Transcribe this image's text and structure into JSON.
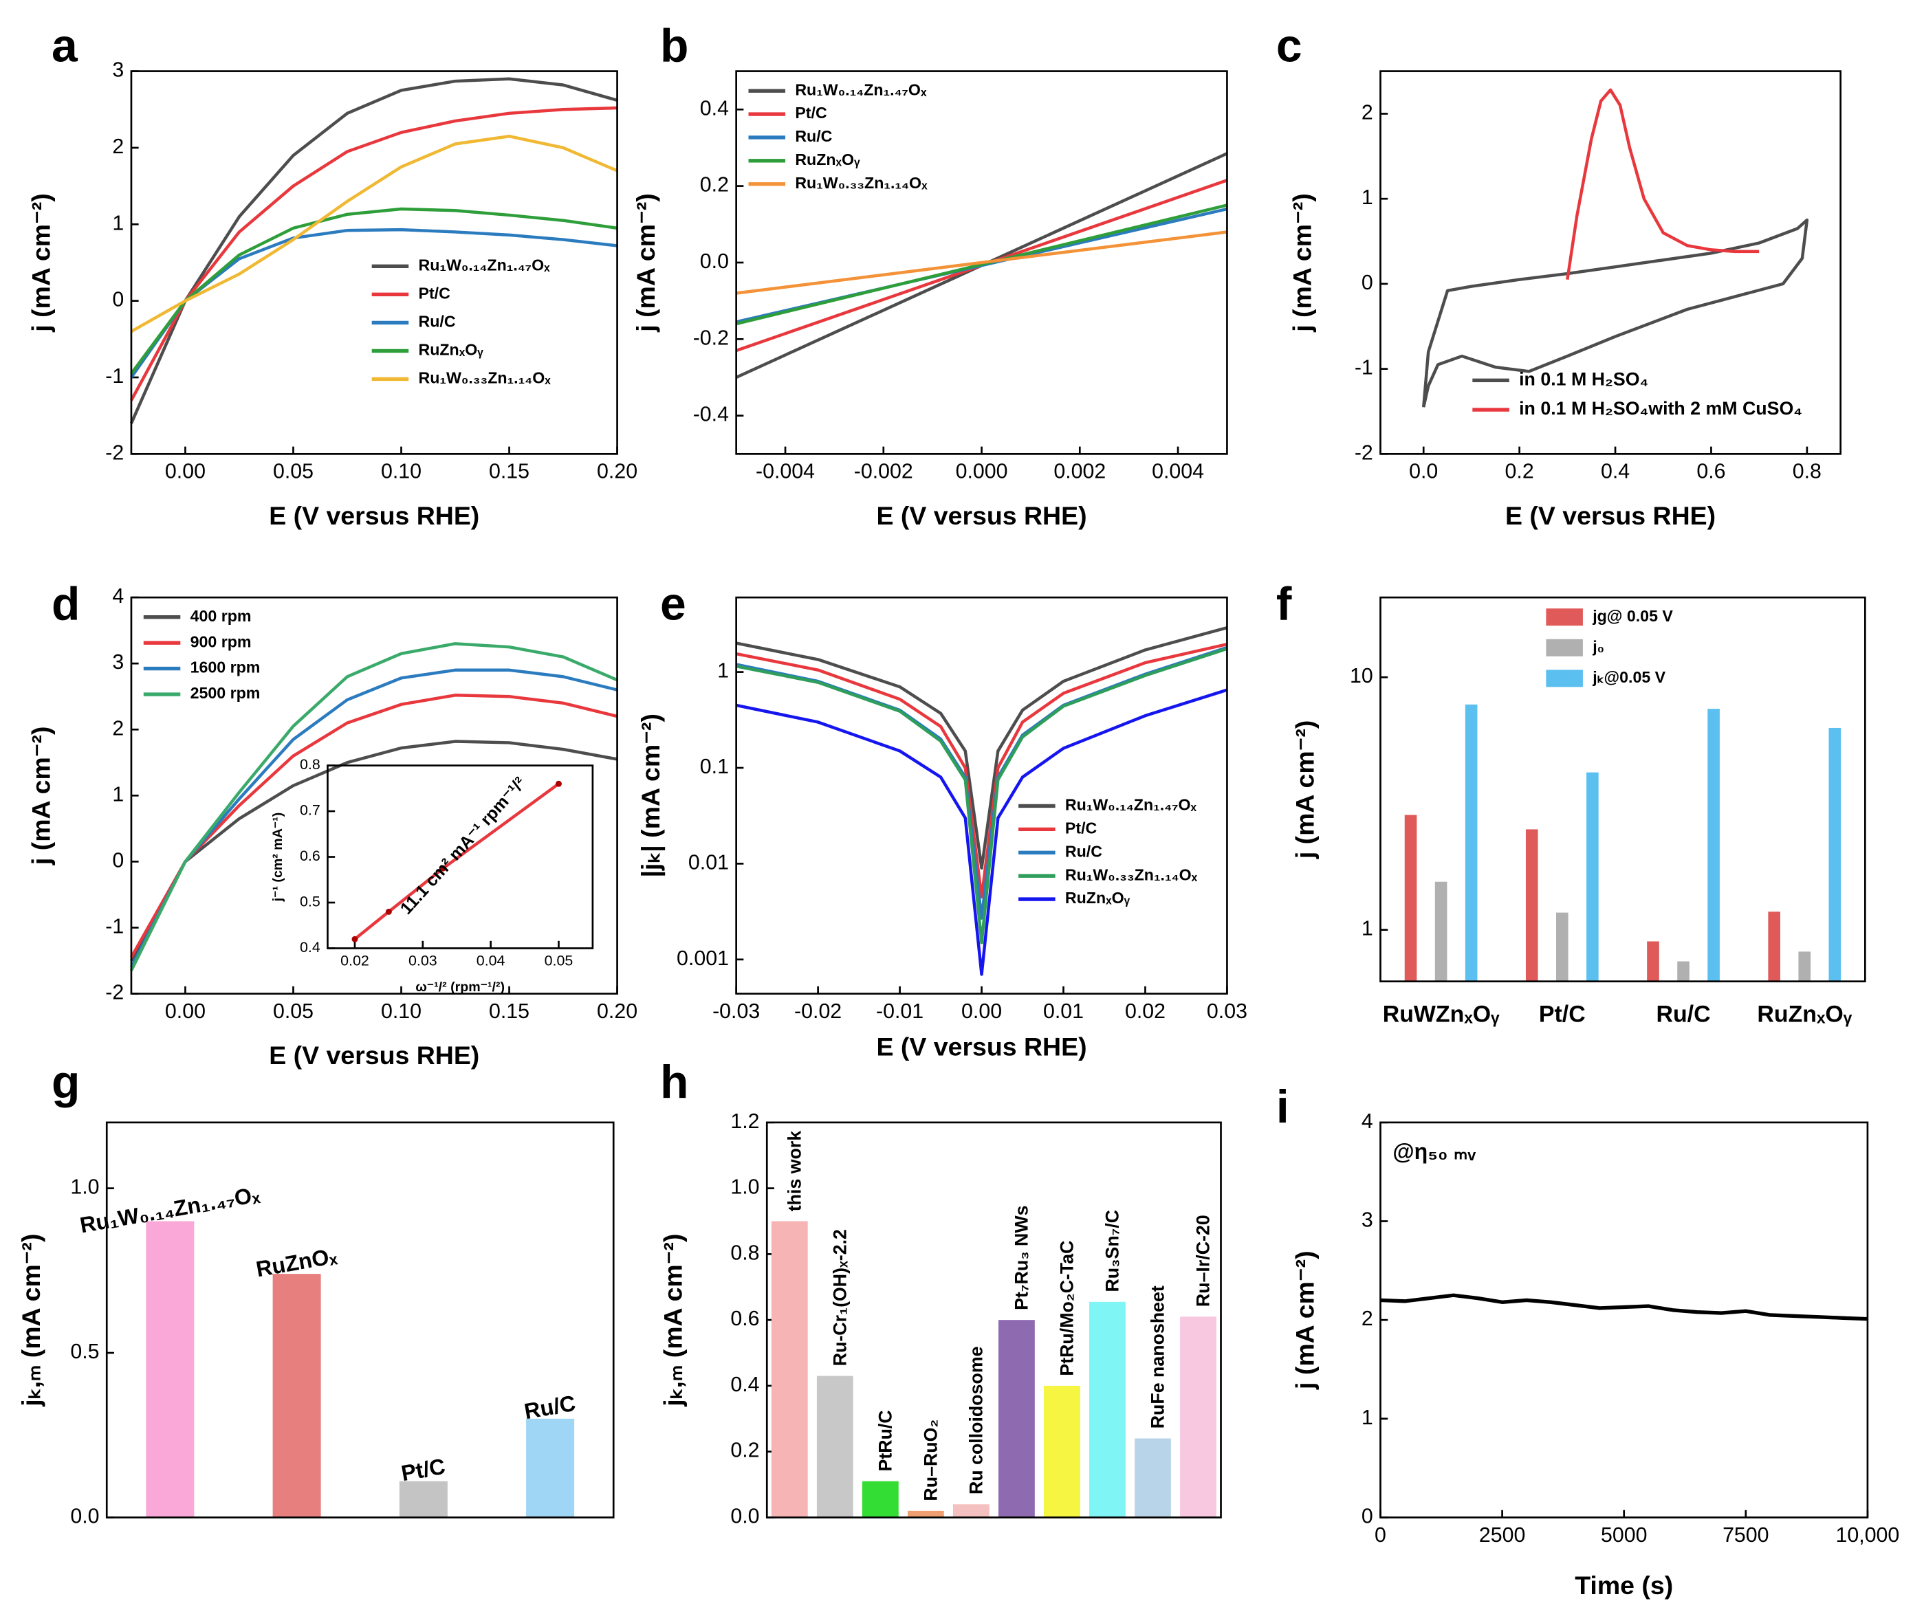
{
  "chart_data": [
    {
      "type": "line",
      "label": "a",
      "xlabel": "E (V versus RHE)",
      "ylabel": "j (mA cm⁻²)",
      "xlim": [
        -0.025,
        0.2
      ],
      "ylim": [
        -2,
        3
      ],
      "xticks": [
        {
          "value": 0,
          "label": "0.00"
        },
        {
          "value": 0.05,
          "label": "0.05"
        },
        {
          "value": 0.1,
          "label": "0.10"
        },
        {
          "value": 0.15,
          "label": "0.15"
        },
        {
          "value": 0.2,
          "label": "0.20"
        }
      ],
      "yticks": [
        -2,
        -1,
        0,
        1,
        2,
        3
      ],
      "legend": "lower right",
      "x": [
        -0.025,
        0,
        0.025,
        0.05,
        0.075,
        0.1,
        0.125,
        0.15,
        0.175,
        0.2
      ],
      "series": [
        {
          "name": "Ru₁W₀.₁₄Zn₁.₄₇Oₓ",
          "color": "#4d4d4d",
          "values": [
            -1.6,
            0,
            1.1,
            1.9,
            2.45,
            2.75,
            2.87,
            2.9,
            2.82,
            2.62
          ]
        },
        {
          "name": "Pt/C",
          "color": "#e8383d",
          "values": [
            -1.3,
            0,
            0.9,
            1.5,
            1.95,
            2.2,
            2.35,
            2.45,
            2.5,
            2.52
          ]
        },
        {
          "name": "Ru/C",
          "color": "#2b7bbf",
          "values": [
            -1.0,
            0,
            0.55,
            0.82,
            0.92,
            0.93,
            0.9,
            0.86,
            0.8,
            0.72
          ]
        },
        {
          "name": "RuZnₓOᵧ",
          "color": "#2e9e3a",
          "values": [
            -0.95,
            0,
            0.6,
            0.95,
            1.13,
            1.2,
            1.18,
            1.12,
            1.05,
            0.95
          ]
        },
        {
          "name": "Ru₁W₀.₃₃Zn₁.₁₄Oₓ",
          "color": "#f0b833",
          "values": [
            -0.4,
            0,
            0.35,
            0.8,
            1.3,
            1.75,
            2.05,
            2.15,
            2.0,
            1.7
          ]
        }
      ]
    },
    {
      "type": "line",
      "label": "b",
      "xlabel": "E (V versus RHE)",
      "ylabel": "j (mA cm⁻²)",
      "xlim": [
        -0.005,
        0.005
      ],
      "ylim": [
        -0.5,
        0.5
      ],
      "xticks": [
        -0.004,
        -0.002,
        {
          "value": 0,
          "label": "0.000"
        },
        0.002,
        0.004
      ],
      "yticks": [
        -0.4,
        -0.2,
        {
          "value": 0,
          "label": "0.0"
        },
        0.2,
        0.4
      ],
      "legend": "upper left",
      "x": [
        -0.005,
        0.005
      ],
      "series": [
        {
          "name": "Ru₁W₀.₁₄Zn₁.₄₇Oₓ",
          "color": "#4d4d4d",
          "values": [
            -0.3,
            0.285
          ]
        },
        {
          "name": "Pt/C",
          "color": "#e8383d",
          "values": [
            -0.23,
            0.215
          ]
        },
        {
          "name": "Ru/C",
          "color": "#2b7bbf",
          "values": [
            -0.155,
            0.14
          ]
        },
        {
          "name": "RuZnₓOᵧ",
          "color": "#2e9e3a",
          "values": [
            -0.16,
            0.15
          ]
        },
        {
          "name": "Ru₁W₀.₃₃Zn₁.₁₄Oₓ",
          "color": "#f39237",
          "values": [
            -0.08,
            0.08
          ]
        }
      ]
    },
    {
      "type": "line",
      "label": "c",
      "xlabel": "E (V versus RHE)",
      "ylabel": "j (mA cm⁻²)",
      "xlim": [
        -0.09,
        0.87
      ],
      "ylim": [
        -2,
        2.5
      ],
      "xticks": [
        {
          "value": 0,
          "label": "0.0"
        },
        0.2,
        0.4,
        0.6,
        0.8
      ],
      "yticks": [
        -2,
        -1,
        0,
        1,
        2
      ],
      "legend": "lower right",
      "series": [
        {
          "name": "in 0.1 M H₂SO₄",
          "color": "#4d4d4d",
          "x": [
            0,
            0.01,
            0.05,
            0.1,
            0.2,
            0.3,
            0.4,
            0.5,
            0.6,
            0.7,
            0.78,
            0.8,
            0.79,
            0.75,
            0.65,
            0.55,
            0.4,
            0.3,
            0.22,
            0.15,
            0.08,
            0.03,
            0.01,
            0
          ],
          "values": [
            -1.45,
            -0.8,
            -0.08,
            -0.03,
            0.05,
            0.12,
            0.2,
            0.28,
            0.36,
            0.48,
            0.65,
            0.75,
            0.3,
            0,
            -0.15,
            -0.3,
            -0.62,
            -0.85,
            -1.03,
            -0.98,
            -0.85,
            -0.95,
            -1.2,
            -1.45
          ]
        },
        {
          "name": "in 0.1 M H₂SO₄with 2 mM CuSO₄",
          "color": "#e8383d",
          "x": [
            0.3,
            0.32,
            0.35,
            0.37,
            0.39,
            0.41,
            0.43,
            0.46,
            0.5,
            0.55,
            0.6,
            0.65,
            0.7
          ],
          "values": [
            0.05,
            0.8,
            1.7,
            2.15,
            2.28,
            2.1,
            1.6,
            1.0,
            0.6,
            0.45,
            0.4,
            0.38,
            0.38
          ]
        }
      ]
    },
    {
      "type": "line",
      "label": "d",
      "xlabel": "E (V versus RHE)",
      "ylabel": "j (mA cm⁻²)",
      "xlim": [
        -0.025,
        0.2
      ],
      "ylim": [
        -2,
        4
      ],
      "xticks": [
        {
          "value": 0,
          "label": "0.00"
        },
        {
          "value": 0.05,
          "label": "0.05"
        },
        {
          "value": 0.1,
          "label": "0.10"
        },
        {
          "value": 0.15,
          "label": "0.15"
        },
        {
          "value": 0.2,
          "label": "0.20"
        }
      ],
      "yticks": [
        -2,
        -1,
        0,
        1,
        2,
        3,
        4
      ],
      "legend": "upper left",
      "x": [
        -0.025,
        0,
        0.025,
        0.05,
        0.075,
        0.1,
        0.125,
        0.15,
        0.175,
        0.2
      ],
      "series": [
        {
          "name": "400 rpm",
          "color": "#4d4d4d",
          "values": [
            -1.5,
            0,
            0.65,
            1.15,
            1.5,
            1.72,
            1.82,
            1.8,
            1.7,
            1.55
          ]
        },
        {
          "name": "900 rpm",
          "color": "#e8383d",
          "values": [
            -1.45,
            0,
            0.85,
            1.6,
            2.1,
            2.38,
            2.52,
            2.5,
            2.4,
            2.2
          ]
        },
        {
          "name": "1600 rpm",
          "color": "#2b7bbf",
          "values": [
            -1.6,
            0,
            0.95,
            1.85,
            2.45,
            2.78,
            2.9,
            2.9,
            2.8,
            2.6
          ]
        },
        {
          "name": "2500 rpm",
          "color": "#3aaa6a",
          "values": [
            -1.65,
            0,
            1.05,
            2.05,
            2.8,
            3.15,
            3.3,
            3.25,
            3.1,
            2.75
          ]
        }
      ]
    },
    {
      "type": "line",
      "xlabel": "ω⁻¹/² (rpm⁻¹/²)",
      "ylabel": "j⁻¹ (cm² mA⁻¹)",
      "xlim": [
        0.016,
        0.055
      ],
      "ylim": [
        0.4,
        0.8
      ],
      "xticks": [
        0.02,
        0.03,
        0.04,
        0.05
      ],
      "yticks": [
        0.4,
        0.5,
        0.6,
        0.7,
        0.8
      ],
      "markers": true,
      "annotations": [
        "11.1 cm² mA⁻¹ rpm⁻¹/²"
      ],
      "x": [
        0.02,
        0.025,
        0.033,
        0.05
      ],
      "series": [
        {
          "color": "#e8383d",
          "values": [
            0.42,
            0.48,
            0.575,
            0.76
          ]
        }
      ]
    },
    {
      "type": "line",
      "label": "e",
      "xlabel": "E (V versus RHE)",
      "ylabel": "|jₖ| (mA cm⁻²)",
      "xlim": [
        -0.03,
        0.03
      ],
      "ylim": [
        0.00044,
        6
      ],
      "yscale": "log",
      "xticks": [
        -0.03,
        -0.02,
        -0.01,
        {
          "value": 0,
          "label": "0.00"
        },
        0.01,
        0.02,
        0.03
      ],
      "yticks": [
        0.001,
        0.01,
        0.1,
        1
      ],
      "legend": "lower right",
      "x": [
        -0.03,
        -0.02,
        -0.01,
        -0.005,
        -0.002,
        0,
        0.002,
        0.005,
        0.01,
        0.02,
        0.03
      ],
      "series": [
        {
          "name": "Ru₁W₀.₁₄Zn₁.₄₇Oₓ",
          "color": "#4d4d4d",
          "values": [
            2.0,
            1.35,
            0.7,
            0.37,
            0.15,
            0.009,
            0.15,
            0.4,
            0.8,
            1.7,
            2.9
          ]
        },
        {
          "name": "Pt/C",
          "color": "#e8383d",
          "values": [
            1.55,
            1.05,
            0.52,
            0.27,
            0.1,
            0.0045,
            0.1,
            0.3,
            0.6,
            1.25,
            1.95
          ]
        },
        {
          "name": "Ru/C",
          "color": "#2b7bbf",
          "values": [
            1.2,
            0.8,
            0.4,
            0.2,
            0.08,
            0.0027,
            0.08,
            0.22,
            0.45,
            0.95,
            1.8
          ]
        },
        {
          "name": "Ru₁W₀.₃₃Zn₁.₁₄Oₓ",
          "color": "#2e9e5a",
          "values": [
            1.15,
            0.78,
            0.39,
            0.19,
            0.075,
            0.0015,
            0.075,
            0.21,
            0.44,
            0.92,
            1.75
          ]
        },
        {
          "name": "RuZnₓOᵧ",
          "color": "#1515f0",
          "values": [
            0.45,
            0.3,
            0.15,
            0.08,
            0.03,
            0.0007,
            0.03,
            0.08,
            0.16,
            0.35,
            0.65
          ]
        }
      ]
    },
    {
      "type": "bar",
      "label": "f",
      "ylabel": "j (mA cm⁻²)",
      "ylim": [
        0.625,
        20.7
      ],
      "yscale": "log",
      "yticks": [
        1,
        10
      ],
      "legend": "upper center",
      "categories": [
        "RuWZnₓOᵧ",
        "Pt/C",
        "Ru/C",
        "RuZnₓOᵧ"
      ],
      "series": [
        {
          "name": "jg@ 0.05 V",
          "color": "#e05a5a",
          "values": [
            2.85,
            2.5,
            0.9,
            1.18
          ]
        },
        {
          "name": "j₀",
          "color": "#b0b0b0",
          "values": [
            1.55,
            1.17,
            0.75,
            0.82
          ]
        },
        {
          "name": "jₖ@0.05 V",
          "color": "#5bbff0",
          "values": [
            7.8,
            4.2,
            7.5,
            6.3
          ]
        }
      ]
    },
    {
      "type": "bar",
      "label": "g",
      "ylabel": "jₖ,ₘ (mA cm⁻²)",
      "ylim": [
        0,
        1.2
      ],
      "yticks": [
        {
          "value": 0,
          "label": "0.0"
        },
        0.5,
        {
          "value": 1,
          "label": "1.0"
        }
      ],
      "categories": [
        "Ru₁W₀.₁₄Zn₁.₄₇Oₓ",
        "RuZnOₓ",
        "Pt/C",
        "Ru/C"
      ],
      "values": [
        0.9,
        0.74,
        0.11,
        0.3
      ],
      "colors": [
        "#f9a8d8",
        "#e87f7f",
        "#c4c4c4",
        "#9fd6f5"
      ]
    },
    {
      "type": "bar",
      "label": "h",
      "ylabel": "jₖ,ₘ (mA cm⁻²)",
      "ylim": [
        0,
        1.2
      ],
      "yticks": [
        {
          "value": 0,
          "label": "0.0"
        },
        0.2,
        0.4,
        0.6,
        0.8,
        {
          "value": 1,
          "label": "1.0"
        },
        1.2
      ],
      "categories": [
        "this work",
        "Ru-Cr₁(OH)ₓ-2.2",
        "PtRu/C",
        "Ru–RuO₂",
        "Ru colloidosome",
        "Pt₇Ru₃ NWs",
        "PtRu/Mo₂C-TaC",
        "Ru₃Sn₇/C",
        "RuFe nanosheet",
        "Ru–Ir/C-20"
      ],
      "values": [
        0.9,
        0.43,
        0.11,
        0.02,
        0.04,
        0.6,
        0.4,
        0.655,
        0.24,
        0.61
      ],
      "colors": [
        "#f6b4b4",
        "#c8c8c8",
        "#33dd33",
        "#f0a070",
        "#f5c0c0",
        "#8e6bb0",
        "#f5f542",
        "#80f5f5",
        "#b8d4e8",
        "#f8c8e0"
      ],
      "category_label_colors": [
        "#e8191e",
        "#000000",
        "#000000",
        "#000000",
        "#000000",
        "#000000",
        "#000000",
        "#000000",
        "#000000",
        "#000000"
      ]
    },
    {
      "type": "line",
      "label": "i",
      "xlabel": "Time (s)",
      "ylabel": "j (mA cm⁻²)",
      "xlim": [
        0,
        10000
      ],
      "ylim": [
        0,
        4
      ],
      "xticks": [
        0,
        2500,
        5000,
        7500,
        {
          "value": 10000,
          "label": "10,000"
        }
      ],
      "yticks": [
        0,
        1,
        2,
        3,
        4
      ],
      "annotations": [
        "@η₅₀ ₘᵥ"
      ],
      "x": [
        0,
        500,
        1000,
        1500,
        2000,
        2500,
        3000,
        3500,
        4000,
        4500,
        5000,
        5500,
        6000,
        6500,
        7000,
        7500,
        8000,
        8500,
        9000,
        9500,
        10000
      ],
      "series": [
        {
          "color": "#000000",
          "values": [
            2.2,
            2.19,
            2.22,
            2.25,
            2.22,
            2.18,
            2.2,
            2.18,
            2.15,
            2.12,
            2.13,
            2.14,
            2.1,
            2.08,
            2.07,
            2.09,
            2.05,
            2.04,
            2.03,
            2.02,
            2.01
          ]
        }
      ]
    }
  ]
}
